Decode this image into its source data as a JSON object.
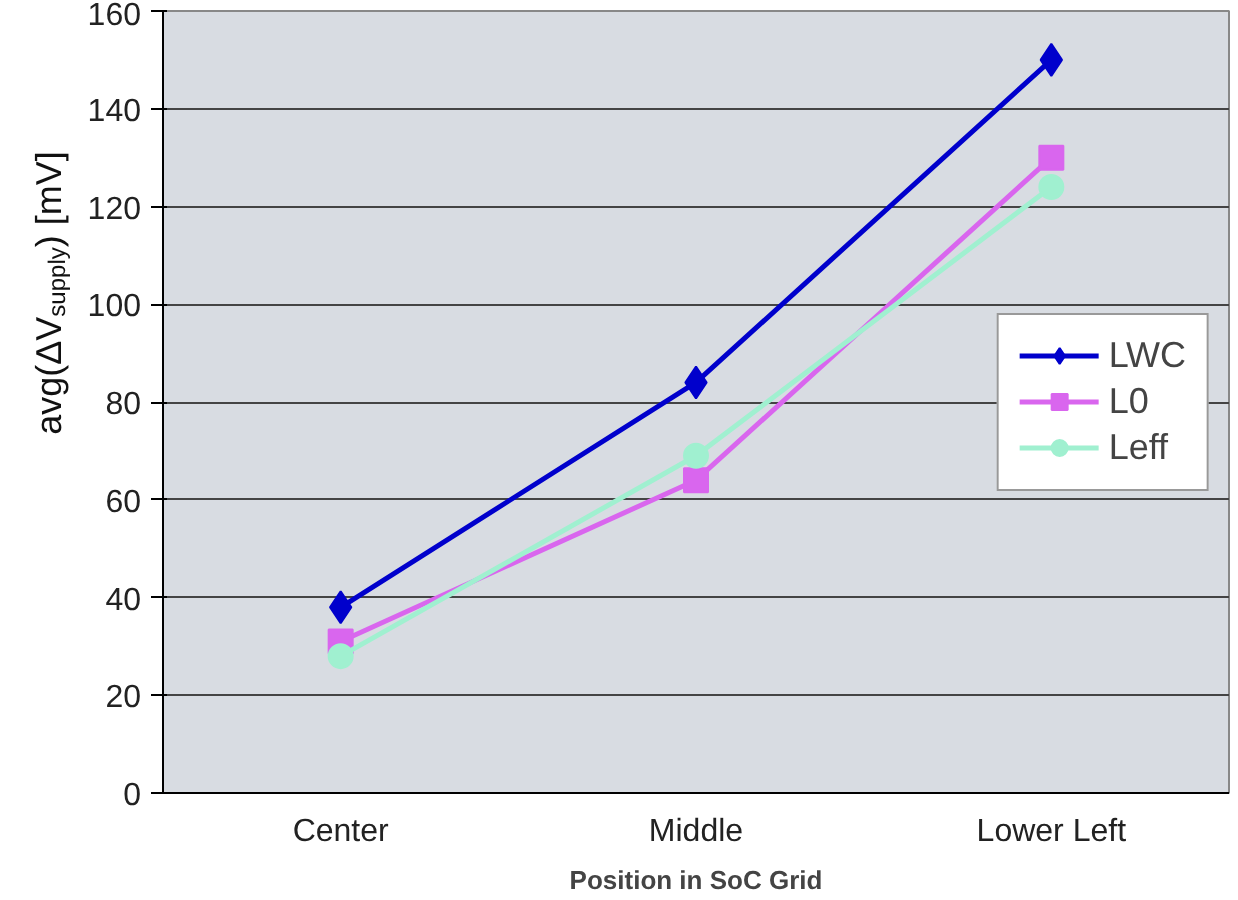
{
  "chart_data": {
    "type": "line",
    "xlabel": "Position in SoC Grid",
    "ylabel": "avg(ΔV$_{supply}$) [mV]",
    "categories": [
      "Center",
      "Middle",
      "Lower Left"
    ],
    "series": [
      {
        "name": "LWC",
        "color": "#0000cc",
        "marker": "diamond",
        "values": [
          38,
          84,
          150
        ]
      },
      {
        "name": "L0",
        "color": "#d966ee",
        "marker": "square",
        "values": [
          31,
          64,
          130
        ]
      },
      {
        "name": "Leff",
        "color": "#a0f0d0",
        "marker": "circle",
        "values": [
          28,
          69,
          124
        ]
      }
    ],
    "ylim": [
      0,
      160
    ],
    "yticks": [
      0,
      20,
      40,
      60,
      80,
      100,
      120,
      140,
      160
    ],
    "grid": "y",
    "legend": "right"
  }
}
